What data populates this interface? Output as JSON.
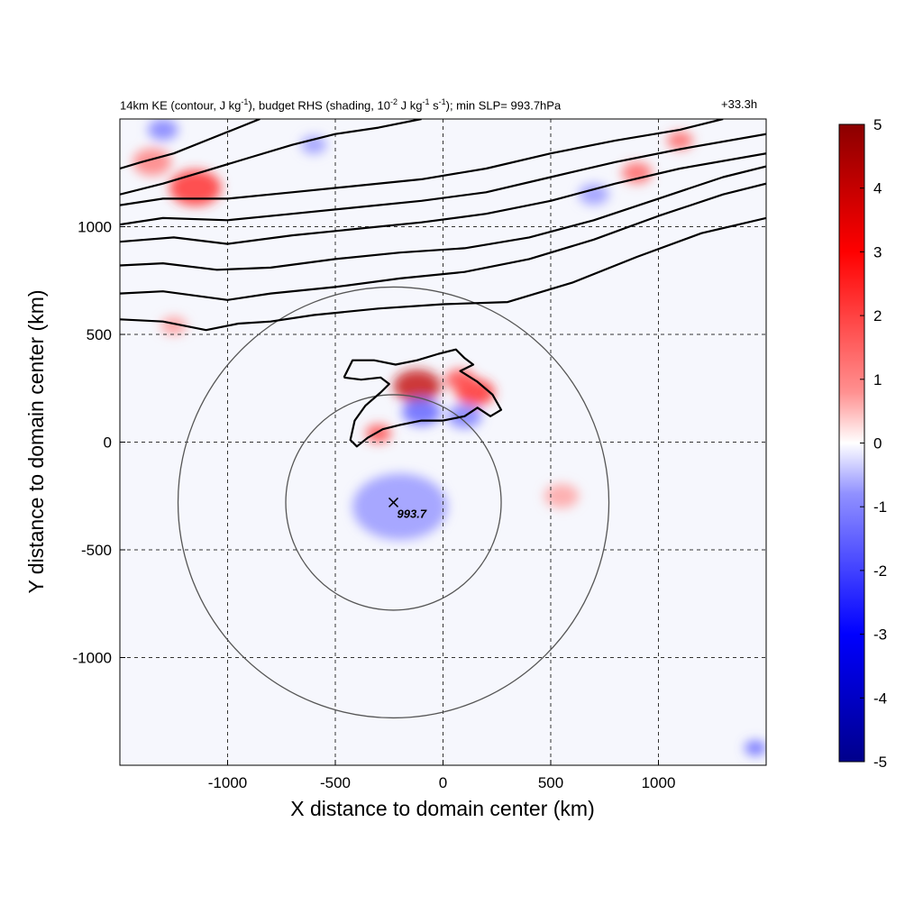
{
  "title": {
    "kind": "14km KE",
    "contour_part": "(contour, J kg",
    "contour_exp": "-1",
    "shading_part1": "), budget RHS (shading, 10",
    "shading_exp1": "-2",
    "shading_part2": " J kg",
    "shading_exp2": "-1",
    "shading_part3": " s",
    "shading_exp3": "-1",
    "tail": "); min SLP= 993.7hPa",
    "time": "+33.3h"
  },
  "chart_data": {
    "type": "heatmap",
    "xlabel": "X distance to domain center (km)",
    "ylabel": "Y distance to domain center (km)",
    "xlim": [
      -1500,
      1500
    ],
    "ylim": [
      -1500,
      1500
    ],
    "xticks": [
      -1000,
      -500,
      0,
      500,
      1000
    ],
    "yticks": [
      -1000,
      -500,
      0,
      500,
      1000
    ],
    "grid": true,
    "colorbar": {
      "range": [
        -5,
        5
      ],
      "ticks": [
        5,
        4,
        3,
        2,
        1,
        0,
        -1,
        -2,
        -3,
        -4,
        -5
      ],
      "colors": [
        "#00008b",
        "#0000ff",
        "#8080ff",
        "#ffffff",
        "#ff8080",
        "#ff0000",
        "#8b0000"
      ]
    },
    "storm_center": {
      "x": -230,
      "y": -280,
      "label": "993.7"
    },
    "range_circles_km": [
      500,
      1000
    ],
    "ke_contours": [
      [
        [
          -1500,
          570
        ],
        [
          -1300,
          560
        ],
        [
          -1100,
          520
        ],
        [
          -950,
          550
        ],
        [
          -800,
          560
        ],
        [
          -600,
          590
        ],
        [
          -300,
          620
        ],
        [
          0,
          640
        ],
        [
          300,
          650
        ],
        [
          600,
          740
        ],
        [
          900,
          860
        ],
        [
          1200,
          970
        ],
        [
          1500,
          1040
        ]
      ],
      [
        [
          -1500,
          690
        ],
        [
          -1300,
          700
        ],
        [
          -1000,
          660
        ],
        [
          -800,
          690
        ],
        [
          -500,
          720
        ],
        [
          -200,
          760
        ],
        [
          100,
          790
        ],
        [
          400,
          850
        ],
        [
          700,
          940
        ],
        [
          1000,
          1050
        ],
        [
          1300,
          1150
        ],
        [
          1500,
          1200
        ]
      ],
      [
        [
          -1500,
          820
        ],
        [
          -1300,
          830
        ],
        [
          -1050,
          800
        ],
        [
          -800,
          810
        ],
        [
          -500,
          850
        ],
        [
          -200,
          880
        ],
        [
          100,
          900
        ],
        [
          400,
          950
        ],
        [
          700,
          1030
        ],
        [
          1000,
          1130
        ],
        [
          1300,
          1230
        ],
        [
          1500,
          1280
        ]
      ],
      [
        [
          -1500,
          930
        ],
        [
          -1250,
          950
        ],
        [
          -1000,
          920
        ],
        [
          -700,
          960
        ],
        [
          -400,
          990
        ],
        [
          -100,
          1020
        ],
        [
          200,
          1060
        ],
        [
          500,
          1120
        ],
        [
          800,
          1200
        ],
        [
          1100,
          1270
        ],
        [
          1500,
          1340
        ]
      ],
      [
        [
          -1500,
          1010
        ],
        [
          -1300,
          1040
        ],
        [
          -1000,
          1030
        ],
        [
          -700,
          1060
        ],
        [
          -400,
          1090
        ],
        [
          -100,
          1120
        ],
        [
          200,
          1160
        ],
        [
          500,
          1230
        ],
        [
          800,
          1300
        ],
        [
          1100,
          1360
        ],
        [
          1500,
          1430
        ]
      ],
      [
        [
          -1500,
          1100
        ],
        [
          -1300,
          1130
        ],
        [
          -1000,
          1130
        ],
        [
          -700,
          1160
        ],
        [
          -400,
          1190
        ],
        [
          -100,
          1220
        ],
        [
          200,
          1270
        ],
        [
          500,
          1340
        ],
        [
          800,
          1400
        ],
        [
          1100,
          1450
        ],
        [
          1300,
          1500
        ]
      ],
      [
        [
          -1500,
          1150
        ],
        [
          -1300,
          1200
        ],
        [
          -1100,
          1260
        ],
        [
          -900,
          1320
        ],
        [
          -700,
          1380
        ],
        [
          -500,
          1430
        ],
        [
          -300,
          1460
        ],
        [
          -100,
          1500
        ]
      ],
      [
        [
          -1500,
          1270
        ],
        [
          -1400,
          1300
        ],
        [
          -1250,
          1340
        ],
        [
          -1100,
          1400
        ],
        [
          -950,
          1460
        ],
        [
          -850,
          1500
        ]
      ],
      [
        [
          -460,
          300
        ],
        [
          -420,
          380
        ],
        [
          -320,
          380
        ],
        [
          -220,
          360
        ],
        [
          -120,
          380
        ],
        [
          -20,
          410
        ],
        [
          60,
          430
        ],
        [
          100,
          390
        ],
        [
          140,
          360
        ],
        [
          80,
          330
        ],
        [
          160,
          280
        ],
        [
          230,
          220
        ],
        [
          270,
          150
        ],
        [
          220,
          120
        ],
        [
          160,
          160
        ],
        [
          100,
          120
        ],
        [
          0,
          100
        ],
        [
          -100,
          100
        ],
        [
          -200,
          80
        ],
        [
          -280,
          60
        ],
        [
          -350,
          20
        ],
        [
          -400,
          -20
        ],
        [
          -430,
          10
        ],
        [
          -410,
          100
        ],
        [
          -360,
          170
        ],
        [
          -290,
          230
        ],
        [
          -250,
          270
        ],
        [
          -290,
          300
        ],
        [
          -380,
          290
        ],
        [
          -460,
          300
        ]
      ]
    ],
    "field_features": [
      {
        "x": -300,
        "y": 40,
        "v": 3.5,
        "r": 60
      },
      {
        "x": -120,
        "y": 260,
        "v": 4.5,
        "r": 110
      },
      {
        "x": 150,
        "y": 230,
        "v": 4.0,
        "r": 90
      },
      {
        "x": 80,
        "y": 290,
        "v": 3.5,
        "r": 70
      },
      {
        "x": -100,
        "y": 140,
        "v": -3.0,
        "r": 90
      },
      {
        "x": 100,
        "y": 120,
        "v": -2.5,
        "r": 80
      },
      {
        "x": -200,
        "y": -300,
        "v": -2.0,
        "r": 220
      },
      {
        "x": 550,
        "y": -250,
        "v": 1.8,
        "r": 80
      },
      {
        "x": -1150,
        "y": 1180,
        "v": 4.0,
        "r": 120
      },
      {
        "x": -1350,
        "y": 1300,
        "v": 2.5,
        "r": 90
      },
      {
        "x": 900,
        "y": 1250,
        "v": 3.0,
        "r": 70
      },
      {
        "x": 1100,
        "y": 1400,
        "v": 3.0,
        "r": 60
      },
      {
        "x": 700,
        "y": 1150,
        "v": -2.0,
        "r": 70
      },
      {
        "x": -1300,
        "y": 1450,
        "v": -2.5,
        "r": 70
      },
      {
        "x": -600,
        "y": 1380,
        "v": -2.0,
        "r": 60
      },
      {
        "x": 1450,
        "y": -1420,
        "v": -3.0,
        "r": 50
      },
      {
        "x": -1250,
        "y": 540,
        "v": 2.0,
        "r": 60
      }
    ]
  }
}
